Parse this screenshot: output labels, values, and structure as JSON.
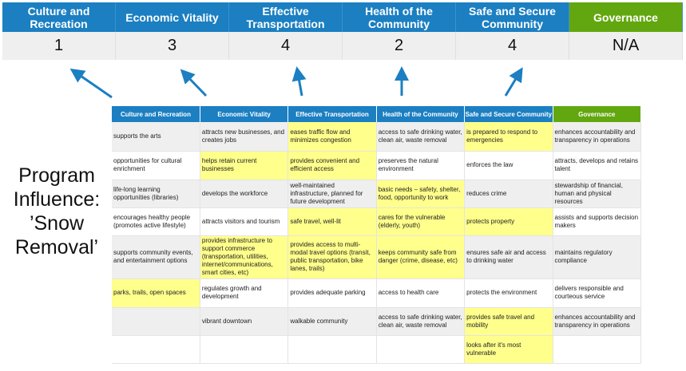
{
  "summary": {
    "columns": [
      {
        "label": "Culture and Recreation",
        "score": "1"
      },
      {
        "label": "Economic Vitality",
        "score": "3"
      },
      {
        "label": "Effective Transportation",
        "score": "4"
      },
      {
        "label": "Health of the Community",
        "score": "2"
      },
      {
        "label": "Safe and Secure Community",
        "score": "4"
      },
      {
        "label": "Governance",
        "score": "N/A"
      }
    ]
  },
  "program_label": "Program Influence: ’Snow Removal’",
  "colors": {
    "header_blue": "#1b7fc2",
    "governance_green": "#62a70f",
    "highlight": "#ffff8c",
    "arrow": "#1b7fc2"
  },
  "table": {
    "headers": [
      "Culture and Recreation",
      "Economic Vitality",
      "Effective Transportation",
      "Health of the Community",
      "Safe and Secure Community",
      "Governance"
    ],
    "rows": [
      {
        "cells": [
          "supports the arts",
          "attracts new businesses, and creates jobs",
          "eases traffic flow and minimizes congestion",
          "access to safe drinking water, clean air, waste removal",
          "is prepared to respond to emergencies",
          "enhances accountability and transparency in operations"
        ],
        "highlighted": [
          false,
          false,
          true,
          false,
          true,
          false
        ]
      },
      {
        "cells": [
          "opportunities for cultural enrichment",
          "helps retain current businesses",
          "provides convenient and efficient access",
          "preserves the natural environment",
          "enforces the law",
          "attracts, develops and retains talent"
        ],
        "highlighted": [
          false,
          true,
          true,
          false,
          false,
          false
        ]
      },
      {
        "cells": [
          "life-long learning opportunities (libraries)",
          "develops the workforce",
          "well-maintained infrastructure, planned for future development",
          "basic needs – safety, shelter, food, opportunity to work",
          "reduces crime",
          "stewardship of financial, human and physical resources"
        ],
        "highlighted": [
          false,
          false,
          false,
          true,
          false,
          false
        ]
      },
      {
        "cells": [
          "encourages healthy people (promotes active lifestyle)",
          "attracts visitors and tourism",
          "safe travel, well-lit",
          "cares for the vulnerable (elderly, youth)",
          "protects property",
          "assists and supports decision makers"
        ],
        "highlighted": [
          false,
          false,
          true,
          true,
          true,
          false
        ]
      },
      {
        "cells": [
          "supports community events, and entertainment options",
          "provides infrastructure to support commerce (transportation, utilities, internet/communications, smart cities, etc)",
          "provides access to multi-modal travel options (transit, public transportation, bike lanes, trails)",
          "keeps community safe from danger (crime, disease, etc)",
          "ensures safe air and access to drinking water",
          "maintains regulatory compliance"
        ],
        "highlighted": [
          false,
          true,
          true,
          true,
          false,
          false
        ]
      },
      {
        "cells": [
          "parks, trails, open spaces",
          "regulates growth and development",
          "provides adequate parking",
          "access to health care",
          "protects the environment",
          "delivers responsible and courteous service"
        ],
        "highlighted": [
          true,
          false,
          false,
          false,
          false,
          false
        ]
      },
      {
        "cells": [
          "",
          "vibrant downtown",
          "walkable community",
          "access to safe drinking water, clean air, waste removal",
          "provides safe travel and mobility",
          "enhances accountability and transparency in operations"
        ],
        "highlighted": [
          false,
          false,
          false,
          false,
          true,
          false
        ]
      },
      {
        "cells": [
          "",
          "",
          "",
          "",
          "looks after it's most vulnerable",
          ""
        ],
        "highlighted": [
          false,
          false,
          false,
          false,
          true,
          false
        ]
      }
    ]
  }
}
